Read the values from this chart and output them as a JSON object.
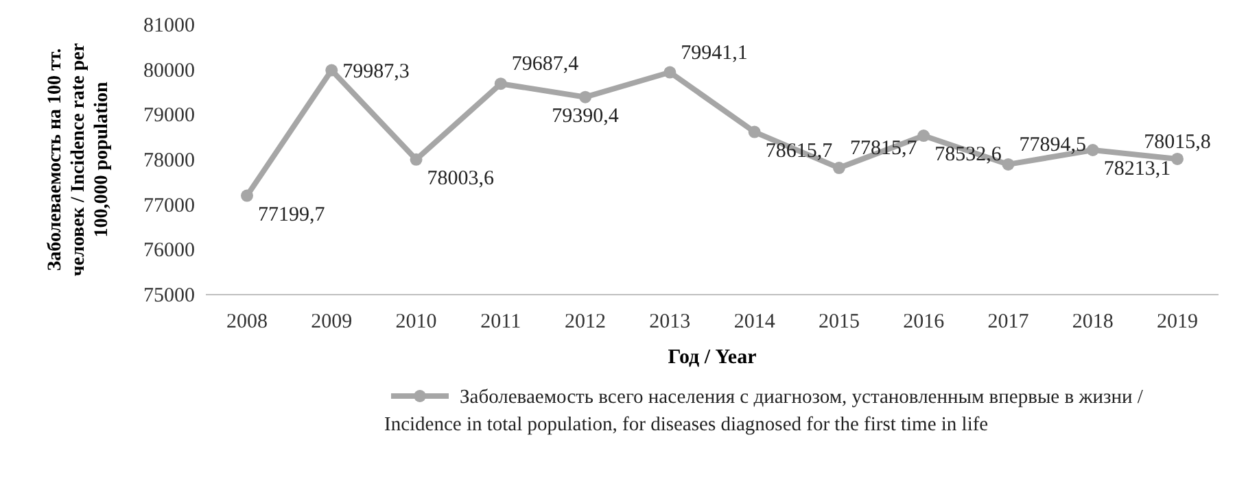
{
  "chart_data": {
    "type": "line",
    "xlabel": "Год / Year",
    "ylabel": "Заболеваемость на 100 тт. человек / Incidence rate per 100,000 population",
    "categories": [
      "2008",
      "2009",
      "2010",
      "2011",
      "2012",
      "2013",
      "2014",
      "2015",
      "2016",
      "2017",
      "2018",
      "2019"
    ],
    "series": [
      {
        "name": "Заболеваемость всего населения с диагнозом, установленным впервые в жизни / Incidence in total population, for diseases diagnosed for the first time in life",
        "color": "#a6a6a6",
        "values": [
          77199.7,
          79987.3,
          78003.6,
          79687.4,
          79390.4,
          79941.1,
          78615.7,
          77815.7,
          78532.6,
          77894.5,
          78213.1,
          78015.8
        ],
        "value_labels": [
          "77199,7",
          "79987,3",
          "78003,6",
          "79687,4",
          "79390,4",
          "79941,1",
          "78615,7",
          "77815,7",
          "78532,6",
          "77894,5",
          "78213,1",
          "78015,8"
        ]
      }
    ],
    "ylim": [
      75000,
      81000
    ],
    "yticks": [
      75000,
      76000,
      77000,
      78000,
      79000,
      80000,
      81000
    ],
    "grid": false,
    "legend": "bottom",
    "marker": "circle",
    "line_style": "solid"
  }
}
